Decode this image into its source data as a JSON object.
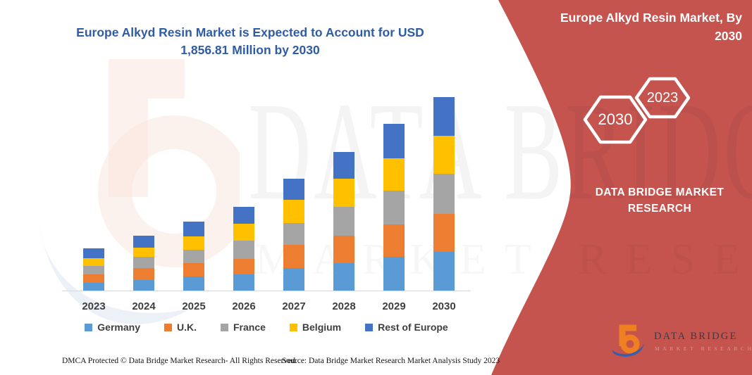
{
  "header": {
    "title": "Europe Alkyd Resin Market is Expected to Account for USD 1,856.81 Million by 2030"
  },
  "banner": {
    "title": "Europe Alkyd Resin Market, By 2030",
    "hexagon_back_label": "2030",
    "hexagon_front_label": "2023",
    "brand_text": "DATA BRIDGE MARKET RESEARCH",
    "background_color": "#C5534E"
  },
  "watermark": {
    "line1": "DATA BRIDGE",
    "line2": "MARKET RESEARCH"
  },
  "chart_data": {
    "type": "bar",
    "stacked": true,
    "title": "Europe Alkyd Resin Market is Expected to Account for USD 1,856.81 Million by 2030",
    "unit": "USD Million",
    "xlabel": "",
    "ylabel": "",
    "y_axis_visible": false,
    "legend_position": "bottom",
    "categories": [
      "2023",
      "2024",
      "2025",
      "2026",
      "2027",
      "2028",
      "2029",
      "2030"
    ],
    "series": [
      {
        "name": "Germany",
        "color": "#5B9BD5",
        "values": [
          74,
          104,
          135,
          157,
          214,
          263,
          326,
          371.36
        ]
      },
      {
        "name": "U.K.",
        "color": "#ED7D31",
        "values": [
          79,
          112,
          128,
          147,
          221,
          261,
          311,
          364.5
        ]
      },
      {
        "name": "France",
        "color": "#A5A5A5",
        "values": [
          81,
          106,
          130,
          176,
          207,
          280,
          324,
          382.8
        ]
      },
      {
        "name": "Belgium",
        "color": "#FFC000",
        "values": [
          72,
          90,
          130,
          162,
          225,
          272,
          311,
          366.8
        ]
      },
      {
        "name": "Rest of Europe",
        "color": "#4472C4",
        "values": [
          95,
          113,
          140,
          161,
          205,
          259,
          331,
          371.35
        ]
      }
    ],
    "totals_estimated": [
      401,
      525,
      663,
      803,
      1072,
      1335,
      1603,
      1856.81
    ],
    "highlighted_value_2030": "1,856.81"
  },
  "footer": {
    "dmca": "DMCA Protected © Data Bridge Market Research-  All Rights Reserved.",
    "source": "Source: Data Bridge Market Research  Market Analysis Study 2023"
  },
  "logo": {
    "name": "DATA BRIDGE",
    "subtitle": "MARKET RESEARCH"
  },
  "theme": {
    "title_color": "#2E5CA6",
    "banner_red": "#C5534E",
    "axis_label_color": "#3F3F3F"
  }
}
